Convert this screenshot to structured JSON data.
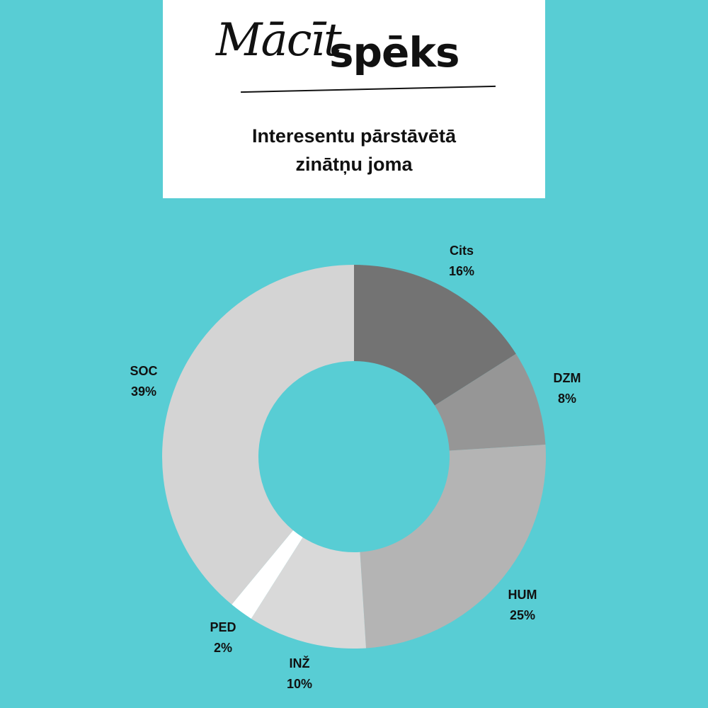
{
  "logo": {
    "script_part": "Mācīt",
    "bold_part": "spēks"
  },
  "title_lines": [
    "Interesentu pārstāvētā",
    "zinātņu joma"
  ],
  "background": "#58cdd4",
  "chart_data": {
    "type": "pie",
    "donut": true,
    "title": "Interesentu pārstāvētā zinātņu joma",
    "categories": [
      "Cits",
      "DZM",
      "HUM",
      "INŽ",
      "PED",
      "SOC"
    ],
    "values": [
      16,
      8,
      25,
      10,
      2,
      39
    ],
    "labels": [
      "16%",
      "8%",
      "25%",
      "10%",
      "2%",
      "39%"
    ],
    "colors": [
      "#737373",
      "#969696",
      "#b4b4b4",
      "#d9d9d9",
      "#ffffff",
      "#d4d4d4"
    ],
    "start": "top",
    "direction": "clockwise"
  }
}
